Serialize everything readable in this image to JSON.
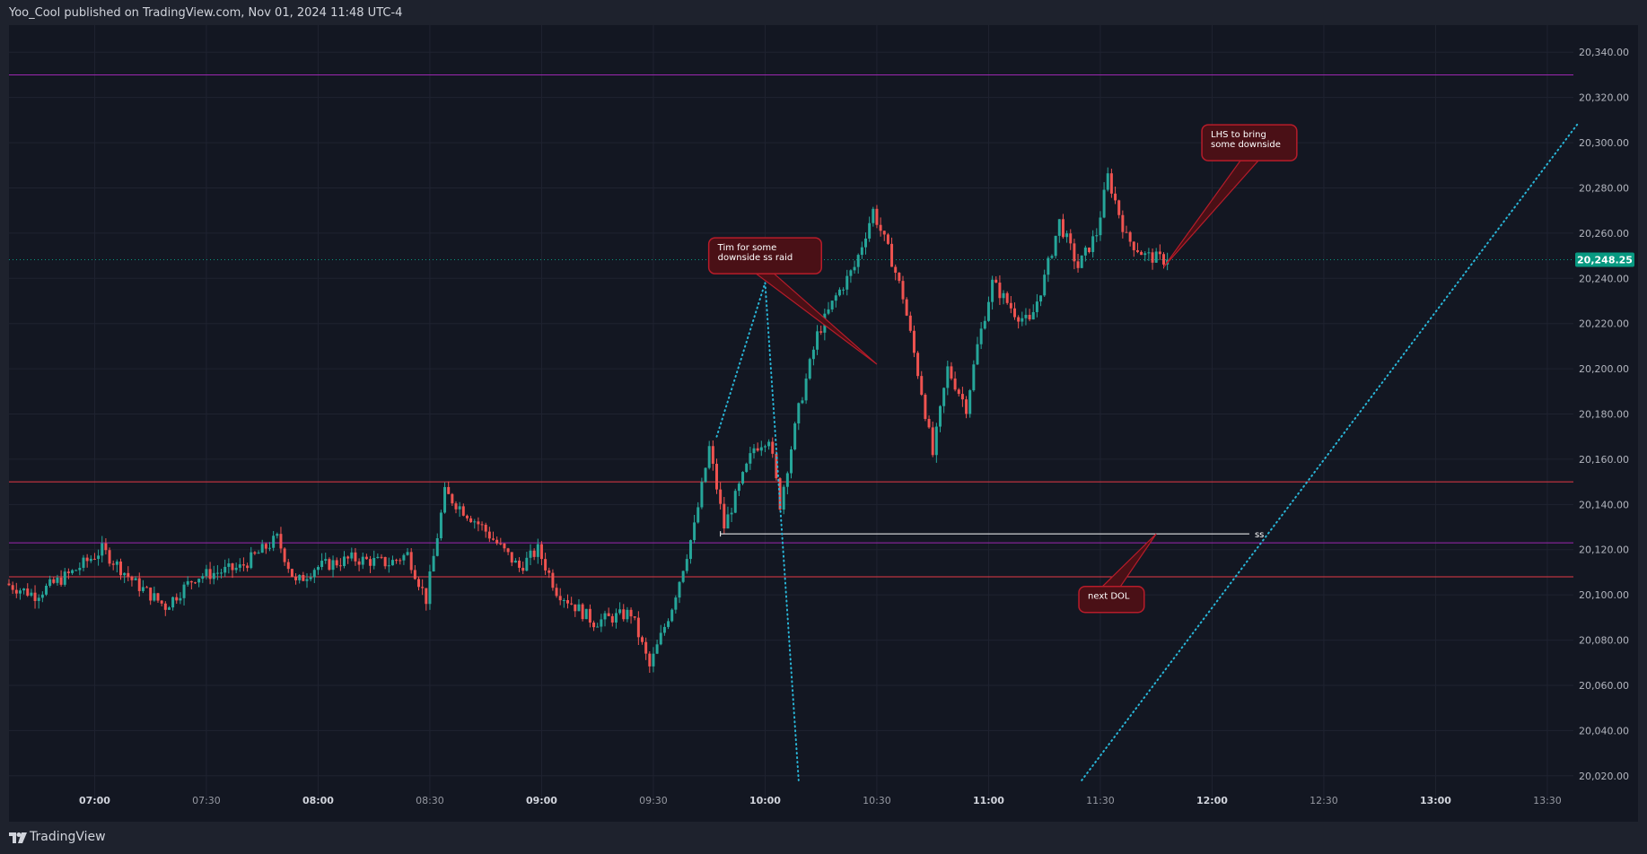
{
  "header": {
    "publish_text": "Yoo_Cool published on TradingView.com, Nov 01, 2024 11:48 UTC-4"
  },
  "footer": {
    "brand": "TradingView",
    "logo_icon": "tradingview-logo-icon"
  },
  "colors": {
    "background": "#131722",
    "grid": "#1f2330",
    "up_candle": "#26a69a",
    "down_candle": "#ef5350",
    "purple_line": "#9c27b0",
    "red_line": "#e53945",
    "cyan_dotted": "#29b6d8",
    "callout_fill": "#4a1016",
    "callout_border": "#b71c2a",
    "price_label": "#089981"
  },
  "chart_data": {
    "type": "candlestick",
    "timeframe": "1 minute",
    "x_axis": {
      "ticks": [
        "07:00",
        "07:30",
        "08:00",
        "08:30",
        "09:00",
        "09:30",
        "10:00",
        "10:30",
        "11:00",
        "11:30",
        "12:00",
        "12:30",
        "13:00",
        "13:30"
      ],
      "range": [
        "06:37",
        "13:37"
      ]
    },
    "y_axis": {
      "ticks": [
        "20,020.00",
        "20,040.00",
        "20,060.00",
        "20,080.00",
        "20,100.00",
        "20,120.00",
        "20,140.00",
        "20,160.00",
        "20,180.00",
        "20,200.00",
        "20,220.00",
        "20,240.00",
        "20,260.00",
        "20,280.00",
        "20,300.00",
        "20,320.00",
        "20,340.00"
      ],
      "range": [
        20010,
        20352
      ]
    },
    "last_price": {
      "value": 20248.25,
      "label": "20,248.25"
    },
    "anchors": [
      [
        "06:37",
        20105
      ],
      [
        "06:45",
        20100
      ],
      [
        "06:55",
        20110
      ],
      [
        "07:03",
        20120
      ],
      [
        "07:12",
        20105
      ],
      [
        "07:20",
        20095
      ],
      [
        "07:28",
        20108
      ],
      [
        "07:40",
        20112
      ],
      [
        "07:50",
        20125
      ],
      [
        "07:55",
        20105
      ],
      [
        "08:00",
        20112
      ],
      [
        "08:10",
        20116
      ],
      [
        "08:20",
        20114
      ],
      [
        "08:25",
        20118
      ],
      [
        "08:30",
        20098
      ],
      [
        "08:35",
        20145
      ],
      [
        "08:45",
        20130
      ],
      [
        "08:55",
        20112
      ],
      [
        "09:00",
        20120
      ],
      [
        "09:05",
        20102
      ],
      [
        "09:15",
        20088
      ],
      [
        "09:25",
        20092
      ],
      [
        "09:30",
        20068
      ],
      [
        "09:36",
        20095
      ],
      [
        "09:42",
        20130
      ],
      [
        "09:46",
        20165
      ],
      [
        "09:50",
        20130
      ],
      [
        "09:58",
        20165
      ],
      [
        "10:02",
        20170
      ],
      [
        "10:05",
        20140
      ],
      [
        "10:10",
        20182
      ],
      [
        "10:15",
        20215
      ],
      [
        "10:20",
        20232
      ],
      [
        "10:25",
        20245
      ],
      [
        "10:30",
        20270
      ],
      [
        "10:35",
        20248
      ],
      [
        "10:38",
        20232
      ],
      [
        "10:43",
        20190
      ],
      [
        "10:46",
        20162
      ],
      [
        "10:50",
        20200
      ],
      [
        "10:55",
        20183
      ],
      [
        "10:58",
        20210
      ],
      [
        "11:02",
        20238
      ],
      [
        "11:08",
        20225
      ],
      [
        "11:12",
        20220
      ],
      [
        "11:16",
        20240
      ],
      [
        "11:20",
        20265
      ],
      [
        "11:25",
        20245
      ],
      [
        "11:30",
        20260
      ],
      [
        "11:33",
        20285
      ],
      [
        "11:38",
        20258
      ],
      [
        "11:43",
        20250
      ],
      [
        "11:48",
        20248.25
      ]
    ],
    "horizontal_lines": [
      {
        "name": "purple-top",
        "price": 20330,
        "color": "#9c27b0"
      },
      {
        "name": "red-upper",
        "price": 20150,
        "color": "#e53945"
      },
      {
        "name": "purple-lower",
        "price": 20123,
        "color": "#9c27b0"
      },
      {
        "name": "red-lower",
        "price": 20108,
        "color": "#e53945"
      }
    ],
    "ss_line": {
      "price": 20127,
      "start": "09:48",
      "end": "12:10",
      "label": "ss"
    },
    "dotted_lines": [
      {
        "from": [
          "09:47",
          20170
        ],
        "to": [
          "10:00",
          20238
        ]
      },
      {
        "from": [
          "10:00",
          20238
        ],
        "to": [
          "10:09",
          20018
        ]
      },
      {
        "from": [
          "11:25",
          20018
        ],
        "to": [
          "13:38",
          20308
        ]
      }
    ],
    "callouts": [
      {
        "name": "callout-tim",
        "lines": [
          "Tim for some",
          "downside ss raid"
        ],
        "time": "10:00",
        "price": 20250,
        "pointer": [
          "10:30",
          20202
        ]
      },
      {
        "name": "callout-lhs",
        "lines": [
          "LHS to bring",
          "some downside"
        ],
        "time": "12:10",
        "price": 20300,
        "pointer": [
          "11:47",
          20245
        ]
      },
      {
        "name": "callout-dol",
        "lines": [
          "next DOL"
        ],
        "time": "11:33",
        "price": 20098,
        "pointer": [
          "11:45",
          20127
        ]
      }
    ]
  }
}
